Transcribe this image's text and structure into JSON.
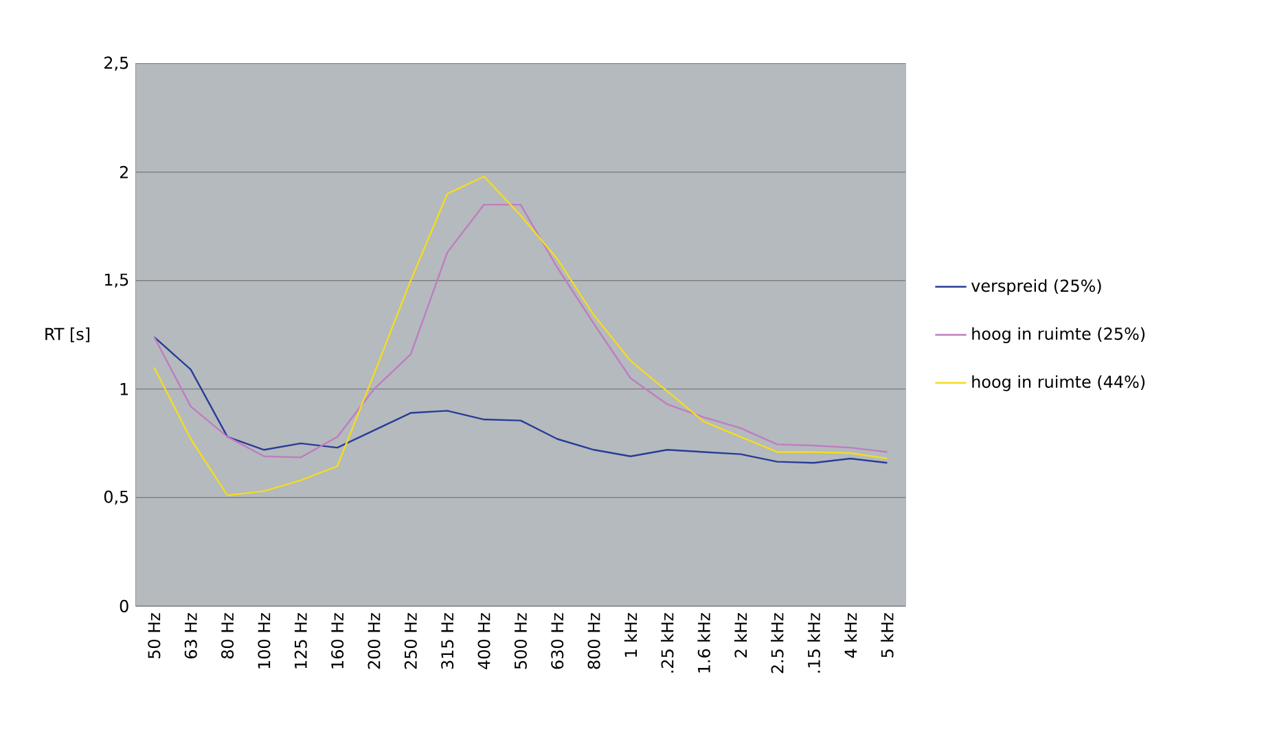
{
  "chart_data": {
    "type": "line",
    "ylabel": "RT [s]",
    "categories": [
      "50 Hz",
      "63 Hz",
      "80 Hz",
      "100 Hz",
      "125 Hz",
      "160 Hz",
      "200 Hz",
      "250 Hz",
      "315 Hz",
      "400 Hz",
      "500 Hz",
      "630 Hz",
      "800 Hz",
      "1 kHz",
      ".25 kHz",
      "1.6 kHz",
      "2 kHz",
      "2.5 kHz",
      ".15 kHz",
      "4 kHz",
      "5 kHz"
    ],
    "series": [
      {
        "name": "verspreid (25%)",
        "color": "#283c96",
        "values": [
          1.24,
          1.09,
          0.78,
          0.72,
          0.75,
          0.73,
          0.81,
          0.89,
          0.9,
          0.86,
          0.855,
          0.77,
          0.72,
          0.69,
          0.72,
          0.71,
          0.7,
          0.665,
          0.66,
          0.68,
          0.66
        ]
      },
      {
        "name": "hoog in ruimte (25%)",
        "color": "#c07cc0",
        "values": [
          1.24,
          0.92,
          0.78,
          0.69,
          0.685,
          0.78,
          1.0,
          1.16,
          1.63,
          1.85,
          1.85,
          1.56,
          1.3,
          1.05,
          0.93,
          0.87,
          0.82,
          0.745,
          0.74,
          0.73,
          0.71
        ]
      },
      {
        "name": "hoog in ruimte (44%)",
        "color": "#f5dc1e",
        "values": [
          1.1,
          0.77,
          0.51,
          0.53,
          0.58,
          0.645,
          1.07,
          1.5,
          1.9,
          1.98,
          1.8,
          1.6,
          1.34,
          1.13,
          0.99,
          0.85,
          0.78,
          0.71,
          0.71,
          0.705,
          0.68
        ]
      }
    ],
    "ylim": [
      0,
      2.5
    ],
    "yticks": [
      {
        "value": 0,
        "label": "0"
      },
      {
        "value": 0.5,
        "label": "0,5"
      },
      {
        "value": 1,
        "label": "1"
      },
      {
        "value": 1.5,
        "label": "1,5"
      },
      {
        "value": 2,
        "label": "2"
      },
      {
        "value": 2.5,
        "label": "2,5"
      }
    ],
    "grid": "y",
    "legend": "right",
    "marker": "none",
    "line_style": "solid"
  }
}
